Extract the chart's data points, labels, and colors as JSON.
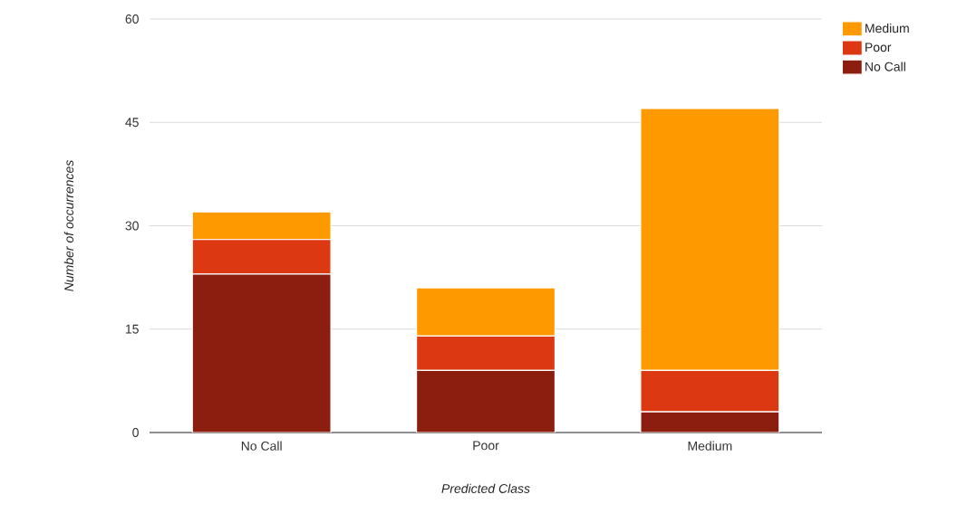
{
  "chart_data": {
    "type": "bar",
    "stacked": true,
    "xlabel": "Predicted Class",
    "ylabel": "Number of occurrences",
    "categories": [
      "No Call",
      "Poor",
      "Medium"
    ],
    "series": [
      {
        "name": "No Call",
        "color": "#8b1e0e",
        "values": [
          23,
          9,
          3
        ]
      },
      {
        "name": "Poor",
        "color": "#dc3912",
        "values": [
          5,
          5,
          6
        ]
      },
      {
        "name": "Medium",
        "color": "#ff9900",
        "values": [
          4,
          7,
          38
        ]
      }
    ],
    "ylim": [
      0,
      60
    ],
    "yticks": [
      0,
      15,
      30,
      45,
      60
    ],
    "grid": "y",
    "legend": "top right"
  }
}
